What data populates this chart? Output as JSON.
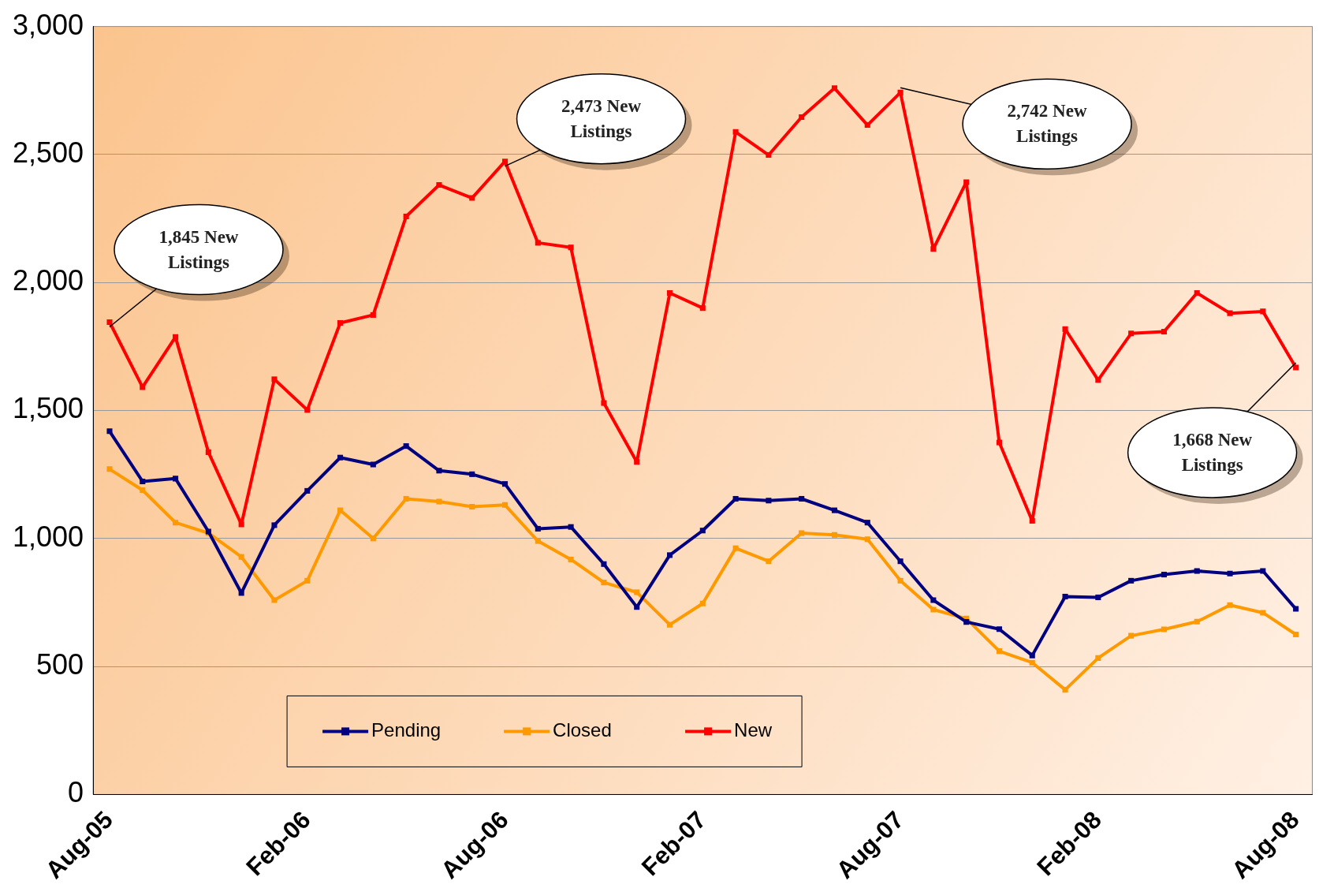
{
  "chart_data": {
    "type": "line",
    "categories": [
      "Aug-05",
      null,
      null,
      null,
      null,
      null,
      "Feb-06",
      null,
      null,
      null,
      null,
      null,
      "Aug-06",
      null,
      null,
      null,
      null,
      null,
      "Feb-07",
      null,
      null,
      null,
      null,
      null,
      "Aug-07",
      null,
      null,
      null,
      null,
      null,
      "Feb-08",
      null,
      null,
      null,
      null,
      null,
      "Aug-08"
    ],
    "series": [
      {
        "name": "Pending",
        "color": "#000080",
        "values": [
          1419,
          1223,
          1234,
          1027,
          787,
          1052,
          1186,
          1316,
          1289,
          1361,
          1265,
          1251,
          1213,
          1038,
          1045,
          900,
          732,
          935,
          1031,
          1155,
          1148,
          1155,
          1110,
          1062,
          911,
          759,
          674,
          646,
          543,
          773,
          770,
          835,
          859,
          873,
          863,
          873,
          725
        ]
      },
      {
        "name": "Closed",
        "color": "#ff9900",
        "values": [
          1271,
          1189,
          1062,
          1021,
          928,
          759,
          835,
          1110,
          1000,
          1155,
          1144,
          1124,
          1131,
          990,
          918,
          828,
          790,
          663,
          746,
          962,
          911,
          1021,
          1014,
          997,
          835,
          722,
          687,
          560,
          515,
          409,
          533,
          620,
          645,
          675,
          740,
          710,
          625
        ]
      },
      {
        "name": "New",
        "color": "#ff0000",
        "values": [
          1845,
          1591,
          1787,
          1337,
          1055,
          1622,
          1502,
          1842,
          1873,
          2258,
          2381,
          2330,
          2473,
          2155,
          2137,
          1529,
          1299,
          1959,
          1900,
          2588,
          2498,
          2646,
          2759,
          2615,
          2742,
          2131,
          2392,
          1375,
          1069,
          1818,
          1619,
          1801,
          1808,
          1959,
          1880,
          1887,
          1668
        ]
      }
    ],
    "ylim": [
      0,
      3000
    ],
    "yticks": [
      0,
      500,
      {
        "value": 1000,
        "label": "1,000"
      },
      {
        "value": 1500,
        "label": "1,500"
      },
      {
        "value": 2000,
        "label": "2,000"
      },
      {
        "value": 2500,
        "label": "2,500"
      },
      {
        "value": 3000,
        "label": "3,000"
      }
    ],
    "grid": "y",
    "legend": "bottom",
    "marker": "square",
    "line_style": "solid",
    "annotations": [
      {
        "text": "1,845 New Listings",
        "x": "Aug-05",
        "y": 1845
      },
      {
        "text": "2,473 New Listings",
        "x": "Aug-06",
        "y": 2473
      },
      {
        "text": "2,742 New Listings",
        "x": "Aug-07",
        "y": 2742
      },
      {
        "text": "1,668 New Listings",
        "x": "Aug-08",
        "y": 1668
      }
    ]
  }
}
